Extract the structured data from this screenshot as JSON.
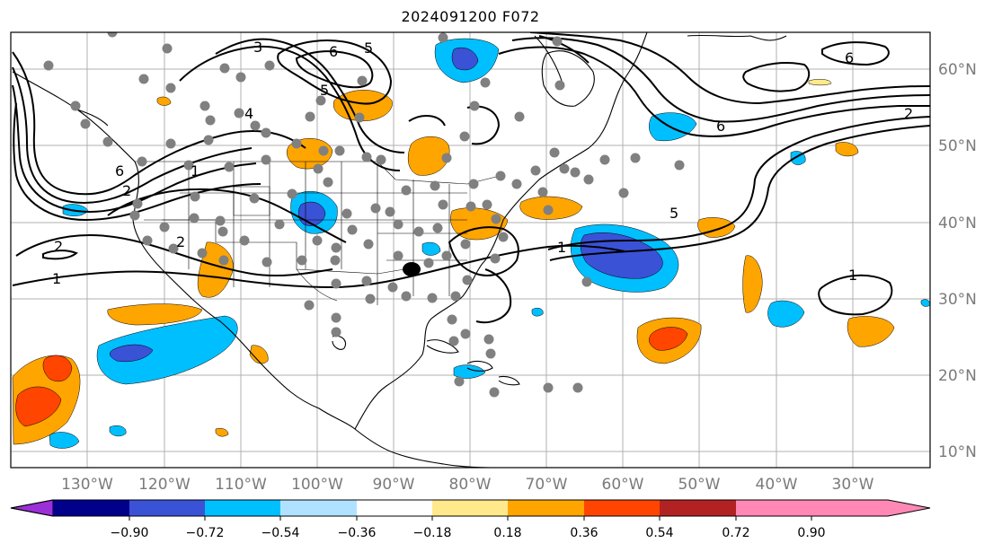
{
  "title": "2024091200 F072",
  "map": {
    "lat_labels": [
      "60°N",
      "50°N",
      "40°N",
      "30°N",
      "20°N",
      "10°N"
    ],
    "lon_labels": [
      "130°W",
      "120°W",
      "110°W",
      "100°W",
      "90°W",
      "80°W",
      "70°W",
      "60°W",
      "50°W",
      "40°W",
      "30°W"
    ],
    "contour_labels": [
      "6",
      "5",
      "4",
      "3",
      "2",
      "1",
      "6",
      "5",
      "2",
      "1",
      "6",
      "2",
      "5",
      "6",
      "1",
      "2",
      "1"
    ],
    "station_marker_color": "#808080",
    "grid_color": "#b0b0b0"
  },
  "colorbar": {
    "colors": [
      "#9b30d8",
      "#00008b",
      "#3a52d6",
      "#00bfff",
      "#b0e2ff",
      "#ffffff",
      "#ffe98a",
      "#ffa500",
      "#ff4500",
      "#b22222",
      "#ff88b5"
    ],
    "tick_labels": [
      "−0.90",
      "−0.72",
      "−0.54",
      "−0.36",
      "−0.18",
      "0.18",
      "0.36",
      "0.54",
      "0.72",
      "0.90"
    ]
  }
}
